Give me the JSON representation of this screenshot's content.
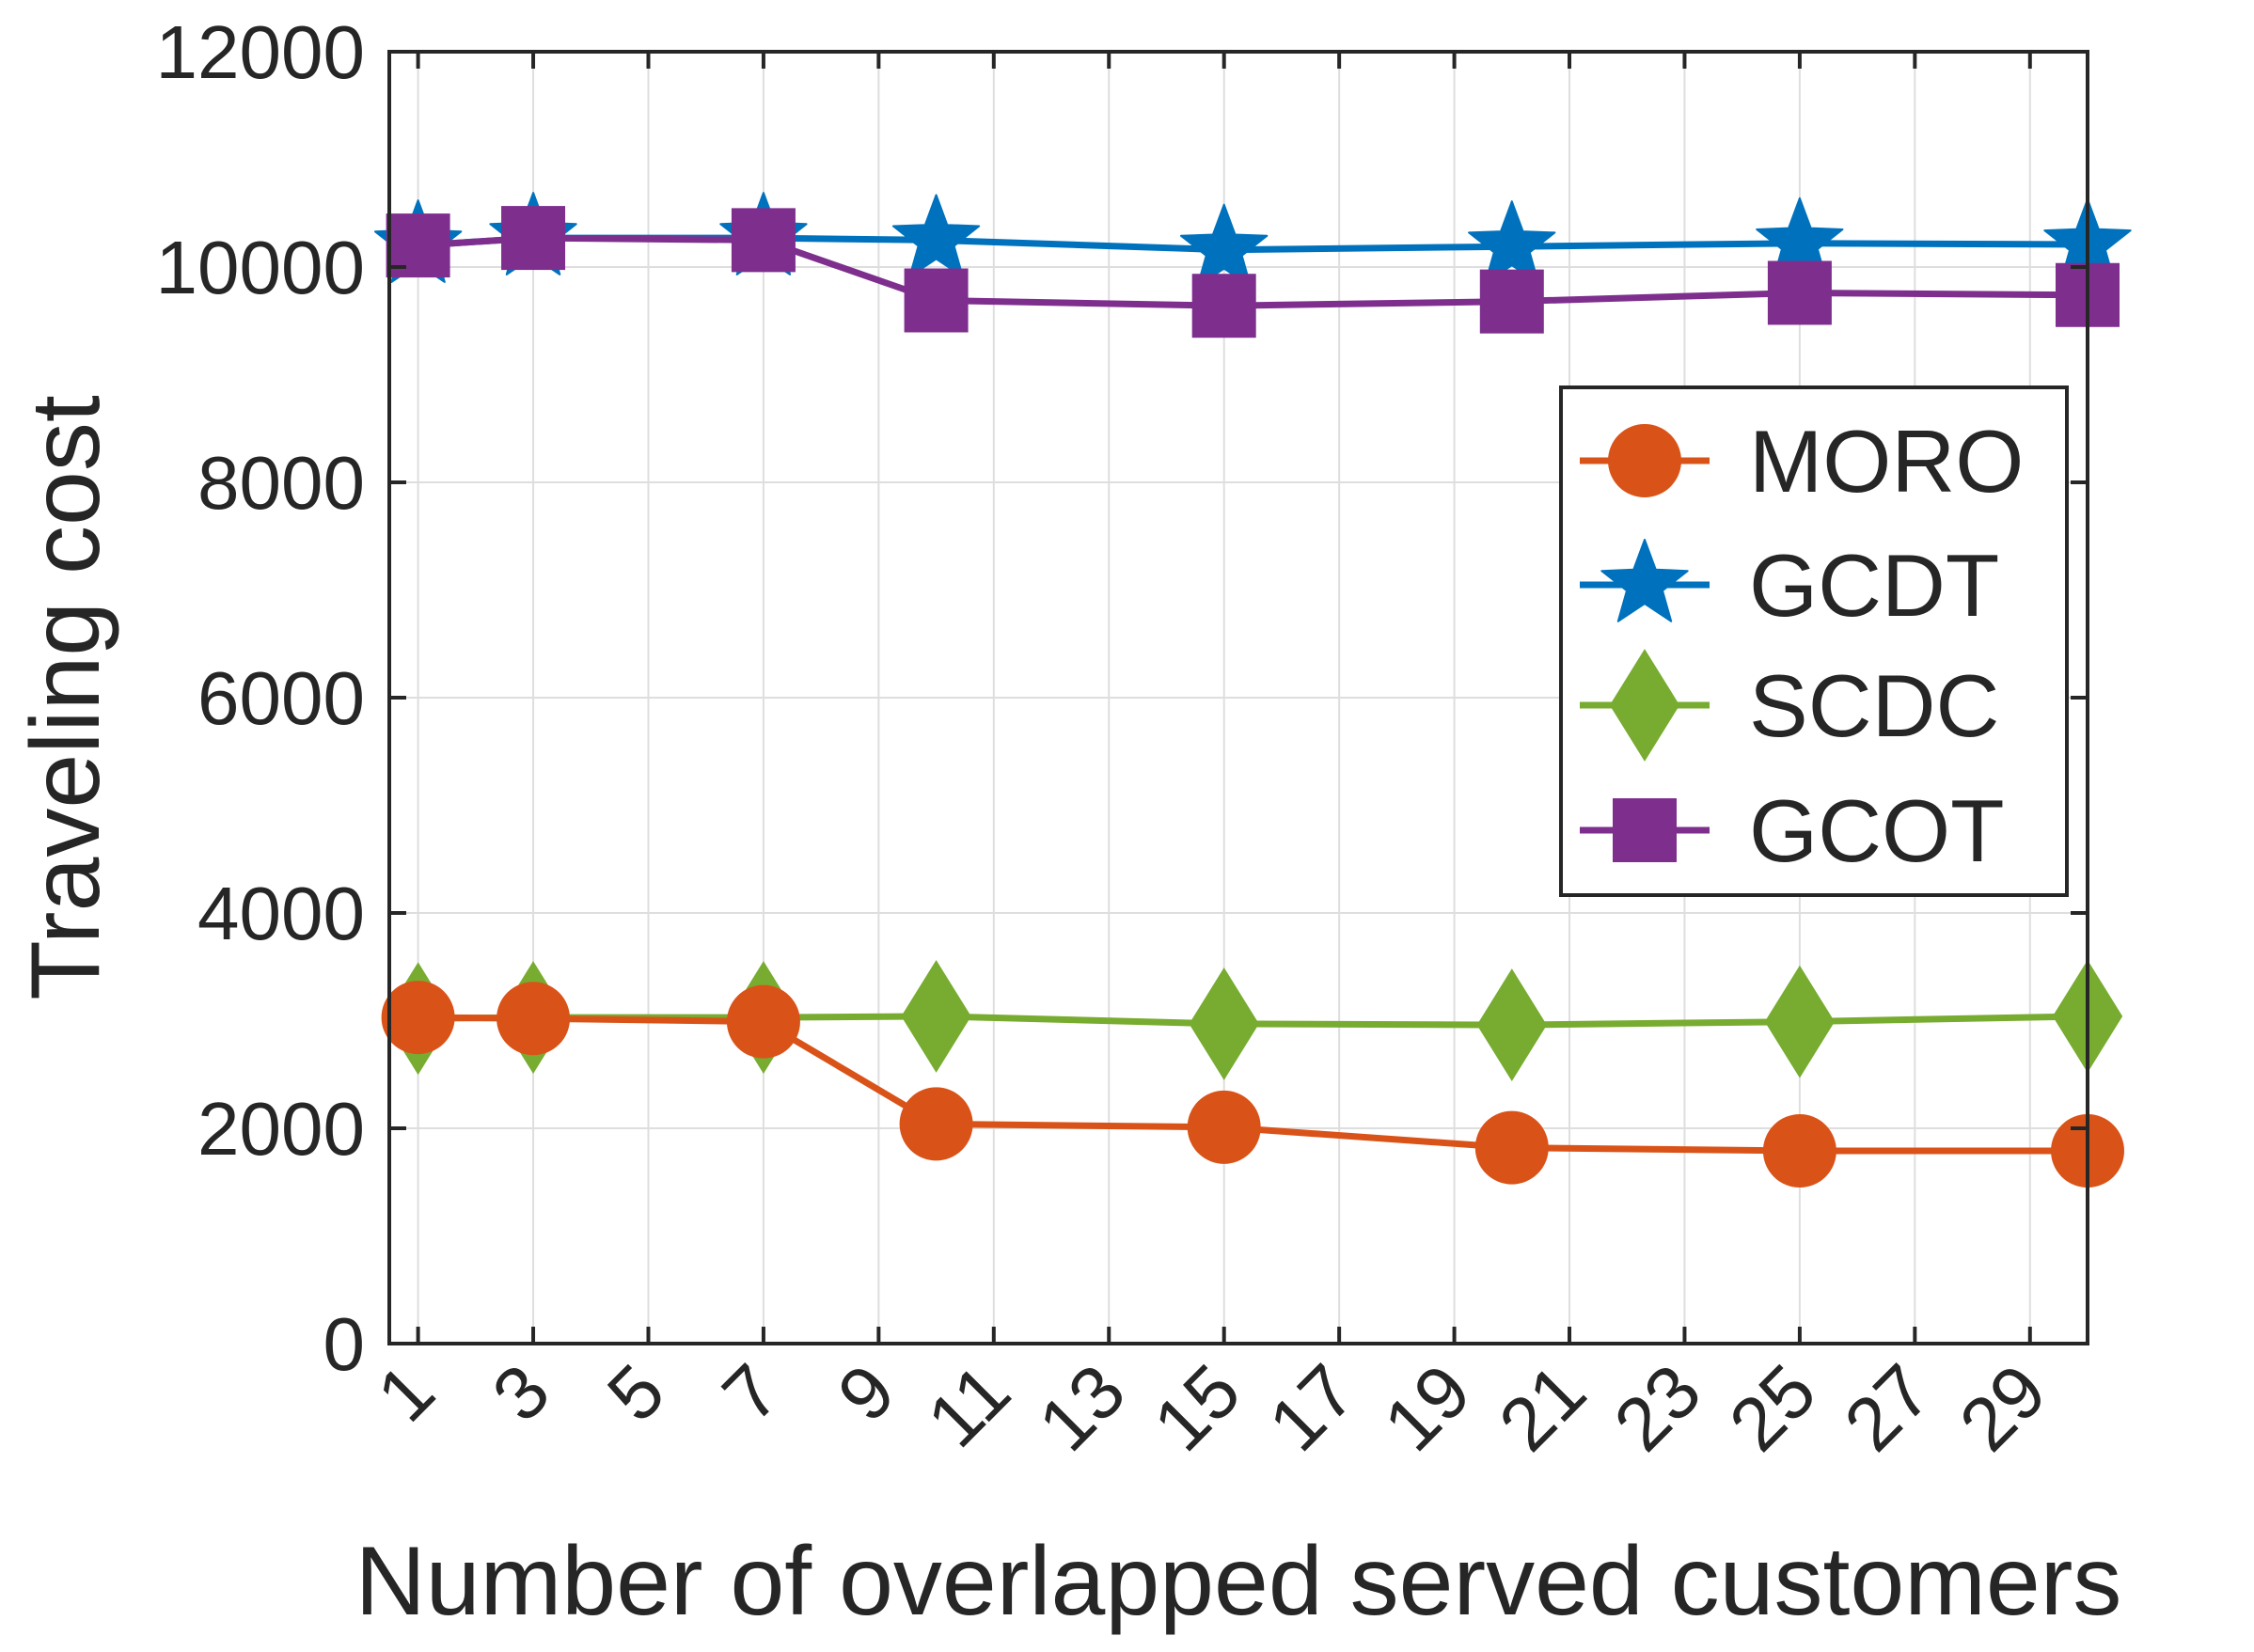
{
  "chart_data": {
    "type": "line",
    "title": "",
    "xlabel": "Number of overlapped served customers",
    "ylabel": "Traveling cost",
    "xlim": [
      0.5,
      30
    ],
    "ylim": [
      0,
      12000
    ],
    "xticks": [
      1,
      3,
      5,
      7,
      9,
      11,
      13,
      15,
      17,
      19,
      21,
      23,
      25,
      27,
      29
    ],
    "xtick_labels": [
      "1",
      "3",
      "5",
      "7",
      "9",
      "11",
      "13",
      "15",
      "17",
      "19",
      "21",
      "23",
      "25",
      "27",
      "29"
    ],
    "yticks": [
      0,
      2000,
      4000,
      6000,
      8000,
      10000,
      12000
    ],
    "ytick_labels": [
      "0",
      "2000",
      "4000",
      "6000",
      "8000",
      "10000",
      "12000"
    ],
    "grid": true,
    "legend_position": "top-right",
    "x": [
      1,
      3,
      7,
      10,
      15,
      20,
      25,
      30
    ],
    "series": [
      {
        "name": "MORO",
        "marker": "circle",
        "color": "#D95319",
        "values": [
          3030,
          3020,
          2990,
          2040,
          2010,
          1820,
          1790,
          1790
        ]
      },
      {
        "name": "GCDT",
        "marker": "star",
        "color": "#0072BD",
        "values": [
          10200,
          10270,
          10270,
          10250,
          10160,
          10190,
          10220,
          10210
        ]
      },
      {
        "name": "SCDC",
        "marker": "diamond",
        "color": "#77AC30",
        "values": [
          3020,
          3030,
          3030,
          3040,
          2970,
          2960,
          2990,
          3040
        ]
      },
      {
        "name": "GCOT",
        "marker": "square",
        "color": "#7E2F8E",
        "values": [
          10200,
          10270,
          10250,
          9690,
          9640,
          9680,
          9760,
          9740
        ]
      }
    ]
  }
}
